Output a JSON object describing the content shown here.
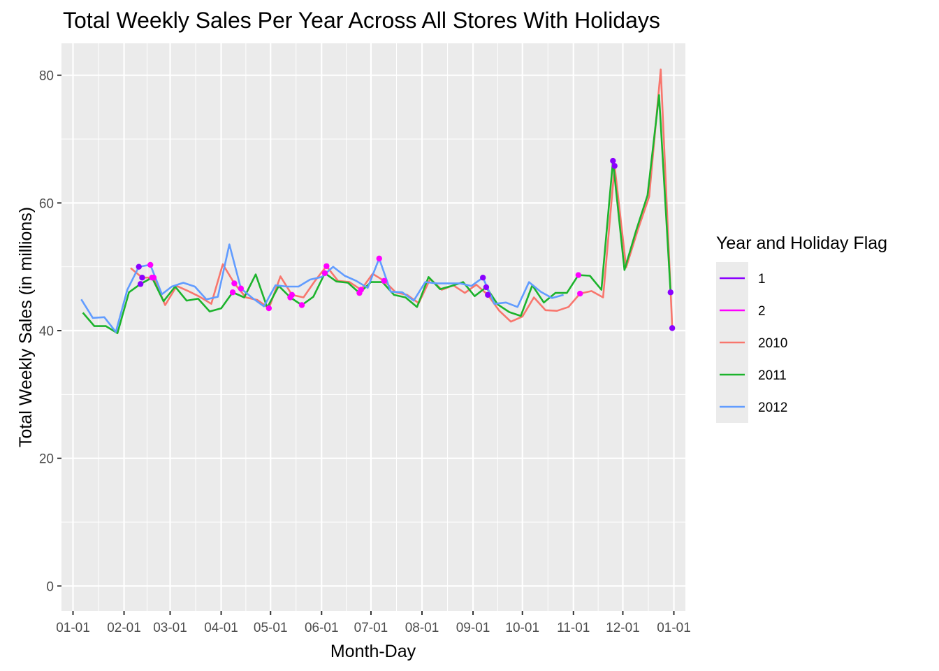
{
  "chart_data": {
    "type": "line",
    "title": "Total Weekly Sales Per Year Across All Stores With Holidays",
    "xlabel": "Month-Day",
    "ylabel": "Total Weekly Sales (in millions)",
    "xlim": [
      "12-25",
      "01-08"
    ],
    "ylim": [
      -3.9,
      85
    ],
    "x_ticks": [
      "01-01",
      "02-01",
      "03-01",
      "04-01",
      "05-01",
      "06-01",
      "07-01",
      "08-01",
      "09-01",
      "10-01",
      "11-01",
      "12-01",
      "01-01"
    ],
    "y_ticks": [
      0,
      20,
      40,
      60,
      80
    ],
    "grid": true,
    "legend": {
      "title": "Year and Holiday Flag",
      "position": "right",
      "entries": [
        {
          "label": "1",
          "color": "#8B00FF"
        },
        {
          "label": "2",
          "color": "#FF00FF"
        },
        {
          "label": "2010",
          "color": "#F8766D"
        },
        {
          "label": "2011",
          "color": "#1CB32C"
        },
        {
          "label": "2012",
          "color": "#619CFF"
        }
      ]
    },
    "series": [
      {
        "name": "2010",
        "color": "#F8766D",
        "points": [
          [
            "02-05",
            49.8
          ],
          [
            "02-12",
            48.3
          ],
          [
            "02-19",
            48.3
          ],
          [
            "02-26",
            44.0
          ],
          [
            "03-05",
            47.0
          ],
          [
            "03-12",
            46.2
          ],
          [
            "03-19",
            45.3
          ],
          [
            "03-26",
            44.2
          ],
          [
            "04-02",
            50.4
          ],
          [
            "04-09",
            47.4
          ],
          [
            "04-16",
            45.2
          ],
          [
            "04-23",
            44.8
          ],
          [
            "04-30",
            43.5
          ],
          [
            "05-07",
            48.5
          ],
          [
            "05-14",
            45.6
          ],
          [
            "05-21",
            45.2
          ],
          [
            "05-28",
            47.8
          ],
          [
            "06-04",
            50.1
          ],
          [
            "06-11",
            47.8
          ],
          [
            "06-18",
            47.6
          ],
          [
            "06-25",
            46.4
          ],
          [
            "07-02",
            48.9
          ],
          [
            "07-09",
            47.8
          ],
          [
            "07-16",
            46.0
          ],
          [
            "07-23",
            45.6
          ],
          [
            "07-30",
            44.3
          ],
          [
            "08-06",
            48.1
          ],
          [
            "08-13",
            46.4
          ],
          [
            "08-20",
            47.1
          ],
          [
            "08-27",
            45.9
          ],
          [
            "09-03",
            47.2
          ],
          [
            "09-10",
            45.6
          ],
          [
            "09-17",
            43.1
          ],
          [
            "09-24",
            41.4
          ],
          [
            "10-01",
            42.2
          ],
          [
            "10-08",
            45.2
          ],
          [
            "10-15",
            43.2
          ],
          [
            "10-22",
            43.1
          ],
          [
            "10-29",
            43.7
          ],
          [
            "11-05",
            45.8
          ],
          [
            "11-12",
            46.2
          ],
          [
            "11-19",
            45.2
          ],
          [
            "11-26",
            65.8
          ],
          [
            "12-03",
            49.9
          ],
          [
            "12-10",
            55.7
          ],
          [
            "12-17",
            61.0
          ],
          [
            "12-24",
            80.9
          ],
          [
            "12-31",
            40.4
          ]
        ]
      },
      {
        "name": "2011",
        "color": "#1CB32C",
        "points": [
          [
            "01-07",
            42.8
          ],
          [
            "01-14",
            40.7
          ],
          [
            "01-21",
            40.7
          ],
          [
            "01-28",
            39.6
          ],
          [
            "02-04",
            46.0
          ],
          [
            "02-11",
            47.3
          ],
          [
            "02-18",
            48.3
          ],
          [
            "02-25",
            44.6
          ],
          [
            "03-04",
            46.9
          ],
          [
            "03-11",
            44.7
          ],
          [
            "03-18",
            45.0
          ],
          [
            "03-25",
            43.0
          ],
          [
            "04-01",
            43.5
          ],
          [
            "04-08",
            46.0
          ],
          [
            "04-15",
            45.2
          ],
          [
            "04-22",
            48.8
          ],
          [
            "04-29",
            43.6
          ],
          [
            "05-06",
            47.0
          ],
          [
            "05-13",
            45.2
          ],
          [
            "05-20",
            44.0
          ],
          [
            "05-27",
            45.3
          ],
          [
            "06-03",
            49.0
          ],
          [
            "06-10",
            47.7
          ],
          [
            "06-17",
            47.5
          ],
          [
            "06-24",
            45.9
          ],
          [
            "07-01",
            47.6
          ],
          [
            "07-08",
            47.6
          ],
          [
            "07-15",
            45.6
          ],
          [
            "07-22",
            45.2
          ],
          [
            "07-29",
            43.7
          ],
          [
            "08-05",
            48.4
          ],
          [
            "08-12",
            46.5
          ],
          [
            "08-19",
            47.0
          ],
          [
            "08-26",
            47.6
          ],
          [
            "09-02",
            45.4
          ],
          [
            "09-09",
            46.8
          ],
          [
            "09-16",
            44.1
          ],
          [
            "09-23",
            42.9
          ],
          [
            "09-30",
            42.3
          ],
          [
            "10-07",
            47.1
          ],
          [
            "10-14",
            44.4
          ],
          [
            "10-21",
            45.9
          ],
          [
            "10-28",
            45.9
          ],
          [
            "11-04",
            48.7
          ],
          [
            "11-11",
            48.6
          ],
          [
            "11-18",
            46.4
          ],
          [
            "11-25",
            66.6
          ],
          [
            "12-02",
            49.5
          ],
          [
            "12-09",
            55.6
          ],
          [
            "12-16",
            61.2
          ],
          [
            "12-23",
            76.9
          ],
          [
            "12-30",
            46.0
          ]
        ]
      },
      {
        "name": "2012",
        "color": "#619CFF",
        "points": [
          [
            "01-06",
            44.9
          ],
          [
            "01-13",
            42.0
          ],
          [
            "01-20",
            42.1
          ],
          [
            "01-27",
            39.8
          ],
          [
            "02-03",
            46.4
          ],
          [
            "02-10",
            50.0
          ],
          [
            "02-17",
            50.3
          ],
          [
            "02-24",
            45.7
          ],
          [
            "03-02",
            46.9
          ],
          [
            "03-09",
            47.5
          ],
          [
            "03-16",
            46.9
          ],
          [
            "03-23",
            44.9
          ],
          [
            "03-30",
            45.3
          ],
          [
            "04-06",
            53.5
          ],
          [
            "04-13",
            46.6
          ],
          [
            "04-20",
            45.1
          ],
          [
            "04-27",
            43.8
          ],
          [
            "05-04",
            47.1
          ],
          [
            "05-11",
            46.9
          ],
          [
            "05-18",
            46.9
          ],
          [
            "05-25",
            48.0
          ],
          [
            "06-01",
            48.4
          ],
          [
            "06-08",
            50.0
          ],
          [
            "06-15",
            48.6
          ],
          [
            "06-22",
            47.8
          ],
          [
            "06-29",
            46.7
          ],
          [
            "07-06",
            51.3
          ],
          [
            "07-13",
            46.1
          ],
          [
            "07-20",
            46.0
          ],
          [
            "07-27",
            44.7
          ],
          [
            "08-03",
            47.6
          ],
          [
            "08-10",
            47.4
          ],
          [
            "08-17",
            47.4
          ],
          [
            "08-24",
            47.4
          ],
          [
            "08-31",
            47.0
          ],
          [
            "09-07",
            48.3
          ],
          [
            "09-14",
            44.2
          ],
          [
            "09-21",
            44.4
          ],
          [
            "09-28",
            43.7
          ],
          [
            "10-05",
            47.6
          ],
          [
            "10-12",
            46.1
          ],
          [
            "10-19",
            45.1
          ],
          [
            "10-26",
            45.6
          ]
        ]
      }
    ],
    "holiday_points": [
      {
        "flag": "1",
        "color": "#8B00FF",
        "points": [
          [
            "02-11",
            47.3
          ],
          [
            "02-12",
            48.3
          ],
          [
            "02-10",
            50.0
          ],
          [
            "11-25",
            66.6
          ],
          [
            "11-26",
            65.8
          ],
          [
            "12-30",
            46.0
          ],
          [
            "12-31",
            40.4
          ],
          [
            "09-07",
            48.3
          ],
          [
            "09-09",
            46.8
          ],
          [
            "09-10",
            45.6
          ]
        ]
      },
      {
        "flag": "2",
        "color": "#FF00FF",
        "points": [
          [
            "02-17",
            50.3
          ],
          [
            "02-18",
            48.3
          ],
          [
            "02-19",
            48.3
          ],
          [
            "04-08",
            46.0
          ],
          [
            "04-09",
            47.4
          ],
          [
            "04-13",
            46.6
          ],
          [
            "04-30",
            43.5
          ],
          [
            "05-13",
            45.2
          ],
          [
            "05-14",
            45.6
          ],
          [
            "05-20",
            44.0
          ],
          [
            "06-03",
            49.0
          ],
          [
            "06-04",
            50.1
          ],
          [
            "06-24",
            45.9
          ],
          [
            "06-25",
            46.4
          ],
          [
            "07-06",
            51.3
          ],
          [
            "07-09",
            47.8
          ],
          [
            "11-04",
            48.7
          ],
          [
            "11-05",
            45.8
          ]
        ]
      }
    ]
  }
}
